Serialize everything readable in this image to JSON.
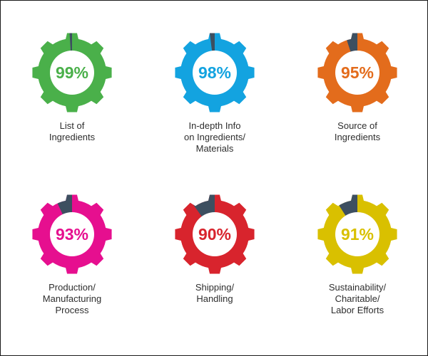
{
  "chart_data": {
    "type": "gauge",
    "remainder_color": "#3d4f60",
    "items": [
      {
        "value": 99,
        "value_label": "99%",
        "label_lines": [
          "List of",
          "Ingredients"
        ],
        "color": "#4ab04a"
      },
      {
        "value": 98,
        "value_label": "98%",
        "label_lines": [
          "In-depth Info",
          "on Ingredients/",
          "Materials"
        ],
        "color": "#13a3e0"
      },
      {
        "value": 95,
        "value_label": "95%",
        "label_lines": [
          "Source of",
          "Ingredients"
        ],
        "color": "#e36c1c"
      },
      {
        "value": 93,
        "value_label": "93%",
        "label_lines": [
          "Production/",
          "Manufacturing",
          "Process"
        ],
        "color": "#e60f8f"
      },
      {
        "value": 90,
        "value_label": "90%",
        "label_lines": [
          "Shipping/",
          "Handling"
        ],
        "color": "#d8242d"
      },
      {
        "value": 91,
        "value_label": "91%",
        "label_lines": [
          "Sustainability/",
          "Charitable/",
          "Labor Efforts"
        ],
        "color": "#d9c000"
      }
    ]
  }
}
